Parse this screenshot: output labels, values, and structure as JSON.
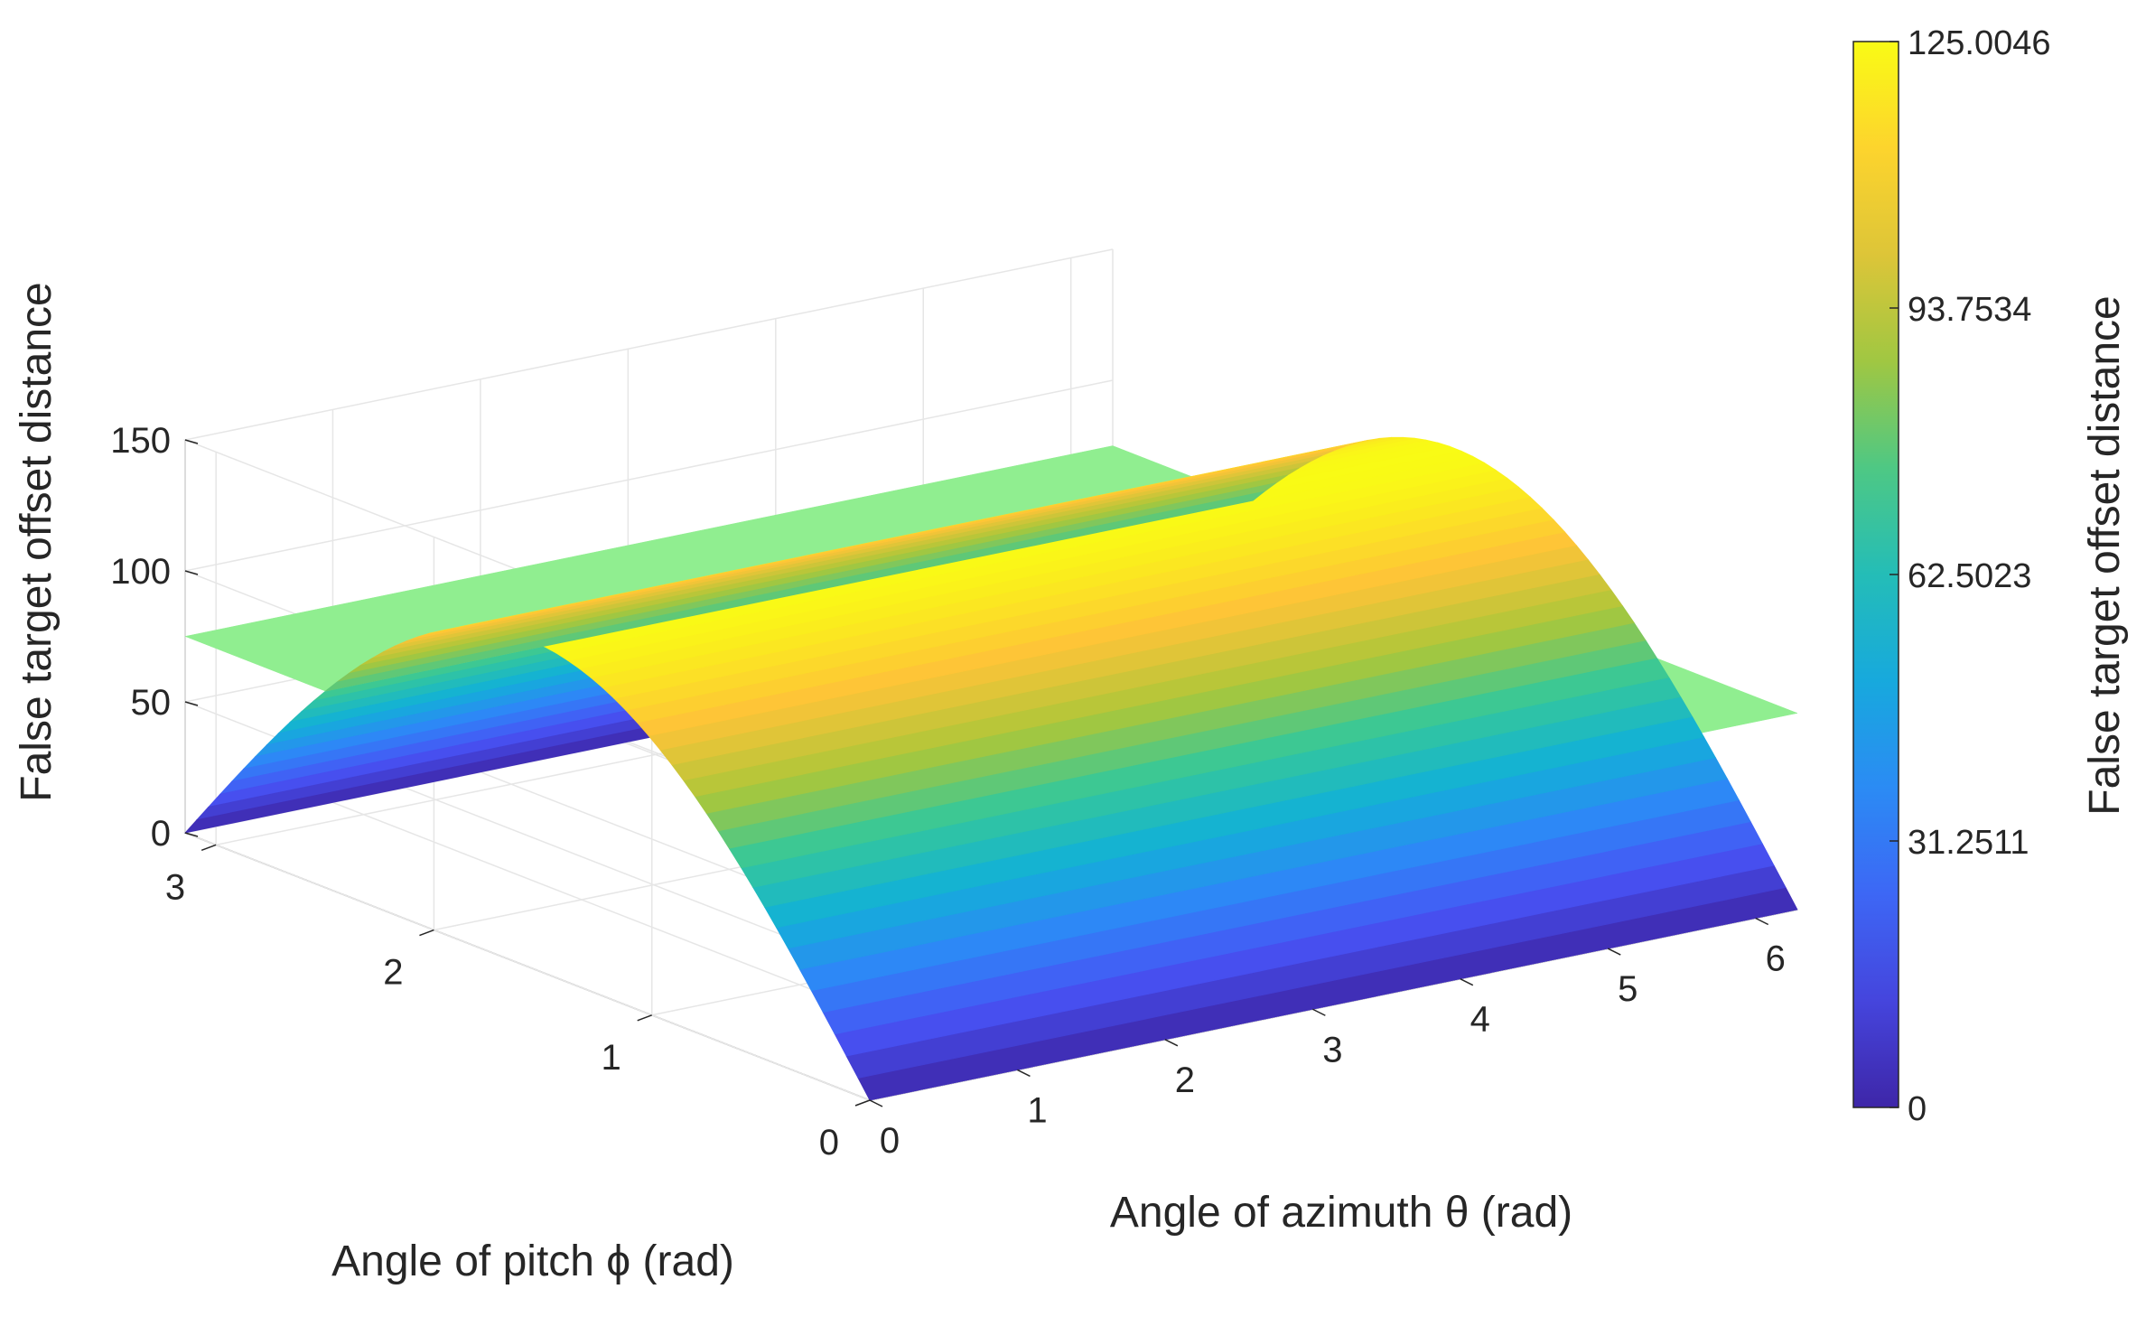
{
  "chart_data": {
    "type": "surface3d",
    "z_axis": {
      "label": "False target offset distance",
      "range": [
        0,
        150
      ],
      "ticks": [
        "0",
        "50",
        "100",
        "150"
      ]
    },
    "x_axis": {
      "label": "Angle of azimuth θ (rad)",
      "range": [
        0,
        6.2832
      ],
      "ticks": [
        "0",
        "1",
        "2",
        "3",
        "4",
        "5",
        "6"
      ]
    },
    "y_axis": {
      "label": "Angle of pitch ϕ (rad)",
      "range": [
        0,
        3.1416
      ],
      "ticks": [
        "0",
        "1",
        "2",
        "3"
      ]
    },
    "grid": true,
    "series": [
      {
        "kind": "surface",
        "formula": "z = 125.0046 * sin(phi)",
        "z_min": 0,
        "z_max": 125.0046,
        "colormap": "parula"
      },
      {
        "kind": "plane",
        "z": 75,
        "color": "#90EE90"
      }
    ],
    "colorbar": {
      "label": "False target offset distance",
      "ticks": [
        "0",
        "31.2511",
        "62.5023",
        "93.7534",
        "125.0046"
      ],
      "range": [
        0,
        125.0046
      ]
    }
  }
}
